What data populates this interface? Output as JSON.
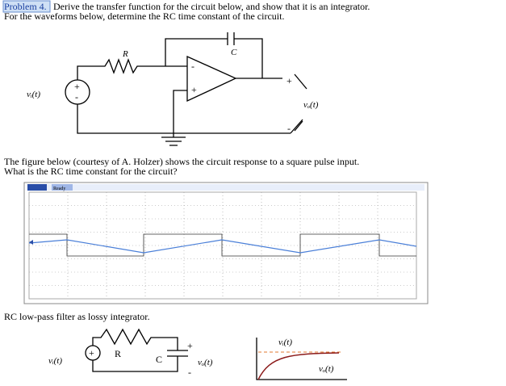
{
  "problem": {
    "label": "Problem 4.",
    "text": "Derive the transfer function for the circuit below, and show that it is an integrator.",
    "line2": "For the waveforms below, determine the RC time constant of the circuit."
  },
  "circuit1": {
    "R": "R",
    "C": "C",
    "input": "vᵢ(t)",
    "output": "vₒ(t)",
    "plus": "+",
    "minus": "-"
  },
  "paragraph": {
    "line1": "The figure below (courtesy of A. Holzer) shows the circuit response to a square pulse input.",
    "line2": "What is the RC time constant for the circuit?"
  },
  "scope": {
    "status": "Ready"
  },
  "caption": "RC low-pass filter as lossy integrator.",
  "circuit2": {
    "R": "R",
    "C": "C",
    "input": "vᵢ(t)",
    "output": "vₒ(t)",
    "plus": "+",
    "minus": "-"
  },
  "response": {
    "input": "vᵢ(t)",
    "output": "vₒ(t)"
  }
}
